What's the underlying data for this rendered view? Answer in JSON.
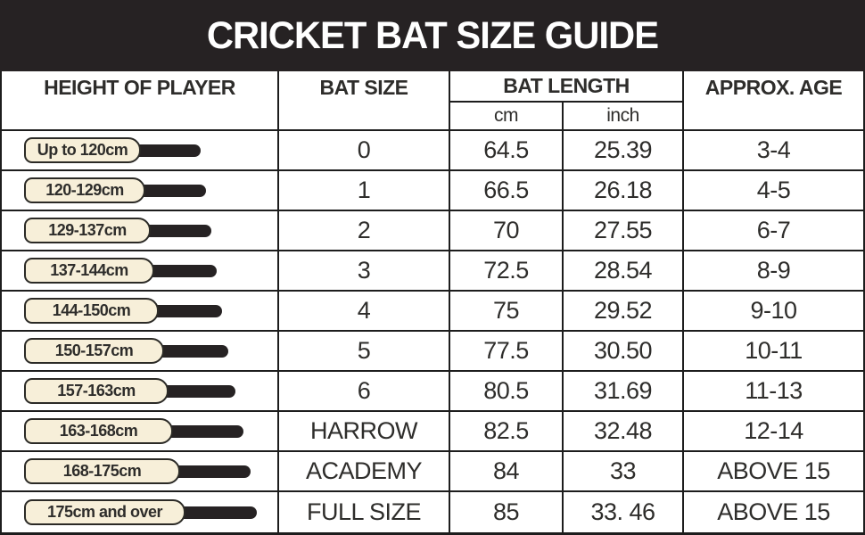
{
  "banner": {
    "title": "CRICKET BAT SIZE GUIDE"
  },
  "table": {
    "headers": {
      "height": "HEIGHT OF PLAYER",
      "bat_size": "BAT SIZE",
      "bat_length": "BAT LENGTH",
      "cm": "cm",
      "inch": "inch",
      "age": "APPROX. AGE"
    },
    "rows": [
      {
        "height_label": "Up to 120cm",
        "bat_size": "0",
        "length_cm": "64.5",
        "length_inch": "25.39",
        "age": "3-4",
        "blade_w": 131,
        "handle_w": 72
      },
      {
        "height_label": "120-129cm",
        "bat_size": "1",
        "length_cm": "66.5",
        "length_inch": "26.18",
        "age": "4-5",
        "blade_w": 136,
        "handle_w": 73
      },
      {
        "height_label": "129-137cm",
        "bat_size": "2",
        "length_cm": "70",
        "length_inch": "27.55",
        "age": "6-7",
        "blade_w": 142,
        "handle_w": 73
      },
      {
        "height_label": "137-144cm",
        "bat_size": "3",
        "length_cm": "72.5",
        "length_inch": "28.54",
        "age": "8-9",
        "blade_w": 146,
        "handle_w": 75
      },
      {
        "height_label": "144-150cm",
        "bat_size": "4",
        "length_cm": "75",
        "length_inch": "29.52",
        "age": "9-10",
        "blade_w": 151,
        "handle_w": 76
      },
      {
        "height_label": "150-157cm",
        "bat_size": "5",
        "length_cm": "77.5",
        "length_inch": "30.50",
        "age": "10-11",
        "blade_w": 157,
        "handle_w": 77
      },
      {
        "height_label": "157-163cm",
        "bat_size": "6",
        "length_cm": "80.5",
        "length_inch": "31.69",
        "age": "11-13",
        "blade_w": 162,
        "handle_w": 80
      },
      {
        "height_label": "163-168cm",
        "bat_size": "HARROW",
        "length_cm": "82.5",
        "length_inch": "32.48",
        "age": "12-14",
        "blade_w": 167,
        "handle_w": 84
      },
      {
        "height_label": "168-175cm",
        "bat_size": "ACADEMY",
        "length_cm": "84",
        "length_inch": "33",
        "age": "ABOVE 15",
        "blade_w": 175,
        "handle_w": 84
      },
      {
        "height_label": "175cm and over",
        "bat_size": "FULL SIZE",
        "length_cm": "85",
        "length_inch": "33. 46",
        "age": "ABOVE 15",
        "blade_w": 181,
        "handle_w": 85
      }
    ]
  },
  "icons": {
    "bat": "cricket-bat-icon"
  },
  "colors": {
    "banner_bg": "#262223",
    "banner_text": "#ffffff",
    "table_bg": "#ffffff",
    "grid_line": "#1d1d1d",
    "text": "#2e2d2b",
    "blade_fill": "#f7efd9",
    "blade_stroke": "#2b2a26",
    "handle": "#262223"
  },
  "chart_data": {
    "type": "table",
    "title": "CRICKET BAT SIZE GUIDE",
    "columns": [
      "HEIGHT OF PLAYER",
      "BAT SIZE",
      "BAT LENGTH cm",
      "BAT LENGTH inch",
      "APPROX. AGE"
    ],
    "rows": [
      [
        "Up to 120cm",
        "0",
        "64.5",
        "25.39",
        "3-4"
      ],
      [
        "120-129cm",
        "1",
        "66.5",
        "26.18",
        "4-5"
      ],
      [
        "129-137cm",
        "2",
        "70",
        "27.55",
        "6-7"
      ],
      [
        "137-144cm",
        "3",
        "72.5",
        "28.54",
        "8-9"
      ],
      [
        "144-150cm",
        "4",
        "75",
        "29.52",
        "9-10"
      ],
      [
        "150-157cm",
        "5",
        "77.5",
        "30.50",
        "10-11"
      ],
      [
        "157-163cm",
        "6",
        "80.5",
        "31.69",
        "11-13"
      ],
      [
        "163-168cm",
        "HARROW",
        "82.5",
        "32.48",
        "12-14"
      ],
      [
        "168-175cm",
        "ACADEMY",
        "84",
        "33",
        "ABOVE 15"
      ],
      [
        "175cm and over",
        "FULL SIZE",
        "85",
        "33. 46",
        "ABOVE 15"
      ]
    ]
  }
}
